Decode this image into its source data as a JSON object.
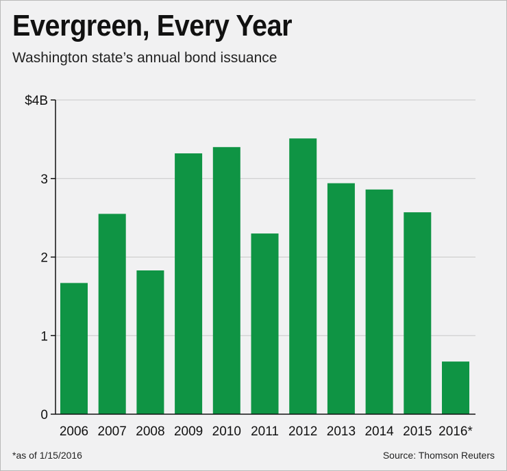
{
  "header": {
    "title": "Evergreen, Every Year",
    "subtitle": "Washington state’s annual bond issuance"
  },
  "footer": {
    "footnote": "*as of 1/15/2016",
    "source": "Source: Thomson Reuters"
  },
  "colors": {
    "bar": "#0f9444",
    "gridline": "#c8c8c8",
    "axis": "#111111",
    "background": "#f1f1f2"
  },
  "chart_data": {
    "type": "bar",
    "title": "Evergreen, Every Year",
    "subtitle": "Washington state’s annual bond issuance",
    "categories": [
      "2006",
      "2007",
      "2008",
      "2009",
      "2010",
      "2011",
      "2012",
      "2013",
      "2014",
      "2015",
      "2016*"
    ],
    "values": [
      1.67,
      2.55,
      1.83,
      3.32,
      3.4,
      2.3,
      3.51,
      2.94,
      2.86,
      2.57,
      0.67
    ],
    "y_ticks": [
      0,
      1,
      2,
      3,
      4
    ],
    "y_tick_labels": [
      "0",
      "1",
      "2",
      "3",
      "$4B"
    ],
    "ylim": [
      0,
      4
    ],
    "xlabel": "",
    "ylabel": "",
    "grid": true
  }
}
